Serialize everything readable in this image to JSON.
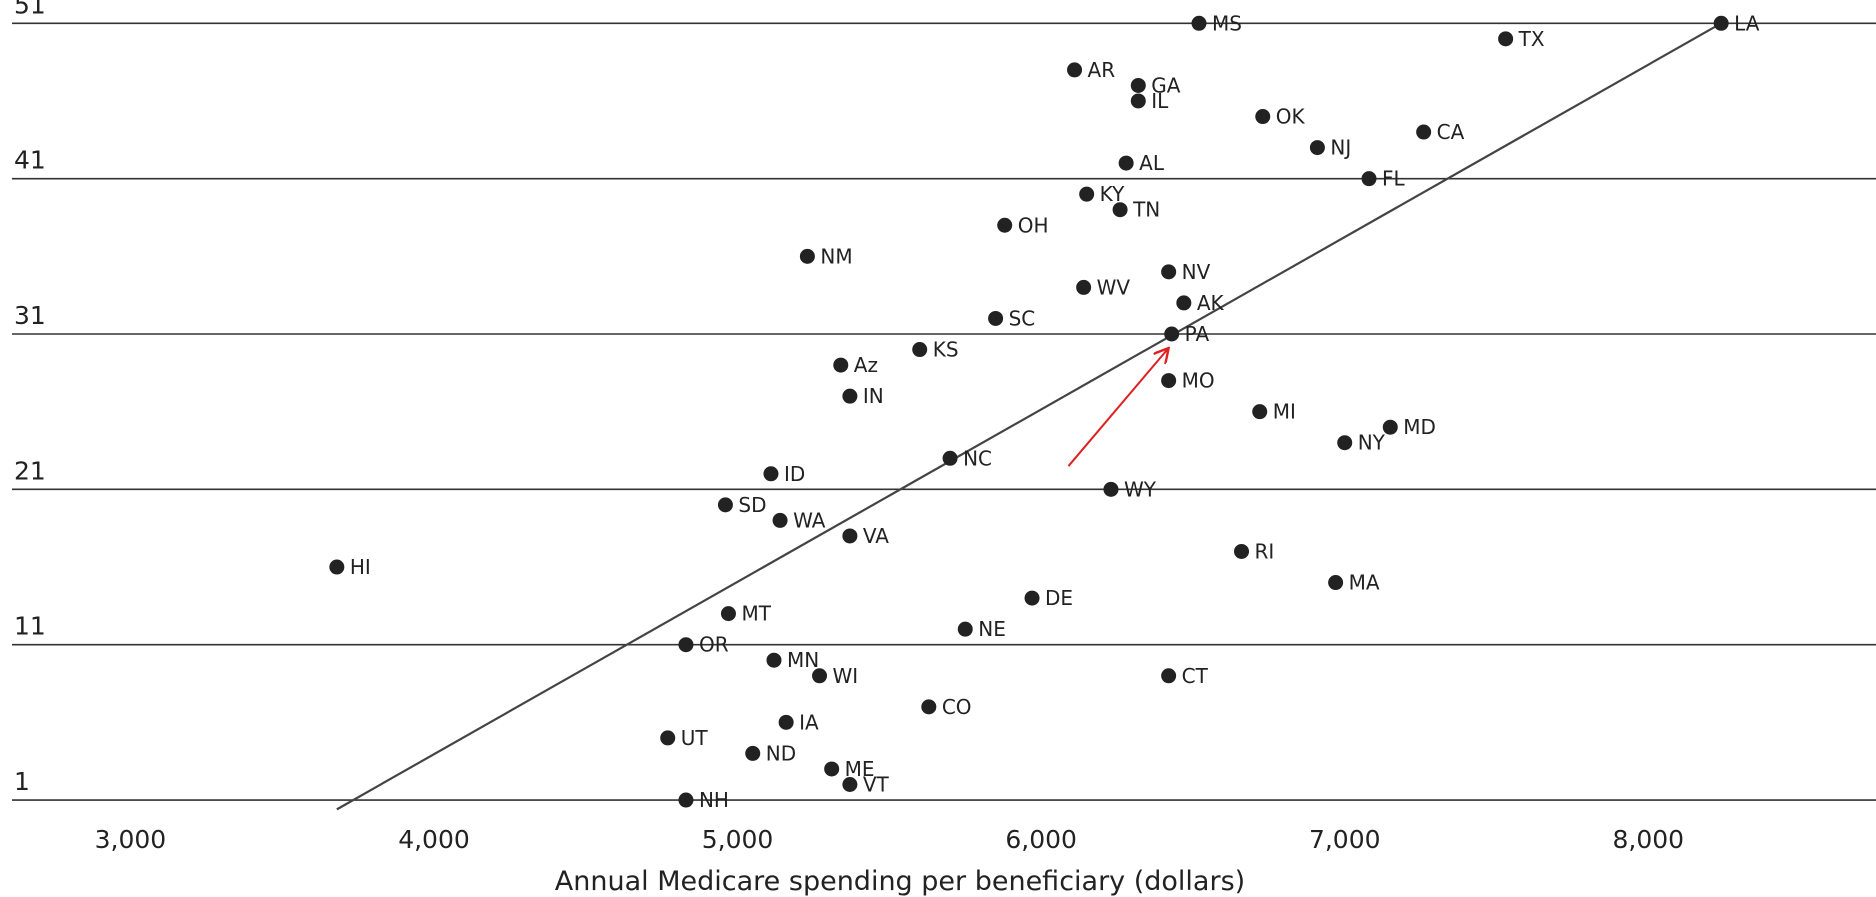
{
  "chart_data": {
    "type": "scatter",
    "title": "",
    "xlabel": "Annual Medicare spending per beneficiary (dollars)",
    "ylabel": "",
    "xlim": [
      2610,
      8750
    ],
    "ylim": [
      52.5,
      -0.8
    ],
    "x_ticks": [
      3000,
      4000,
      5000,
      6000,
      7000,
      8000
    ],
    "x_tick_labels": [
      "3,000",
      "4,000",
      "5,000",
      "6,000",
      "7,000",
      "8,000"
    ],
    "y_ticks": [
      1,
      11,
      21,
      31,
      41,
      51
    ],
    "y_tick_labels": [
      "1",
      "11",
      "21",
      "31",
      "41",
      "51"
    ],
    "grid": "horizontal",
    "colors": {
      "points": "#222222",
      "trend": "#444444",
      "annotation": "#e02020",
      "grid": "#333333"
    },
    "trend_line": {
      "x": [
        3680,
        8240
      ],
      "y": [
        0.4,
        51
      ]
    },
    "annotation": {
      "type": "arrow",
      "from": {
        "x": 6090,
        "y": 22.5
      },
      "to": {
        "x": 6420,
        "y": 30.1
      }
    },
    "points": [
      {
        "label": "NH",
        "x": 4830,
        "y": 1
      },
      {
        "label": "VT",
        "x": 5370,
        "y": 2
      },
      {
        "label": "ME",
        "x": 5310,
        "y": 3
      },
      {
        "label": "ND",
        "x": 5050,
        "y": 4
      },
      {
        "label": "UT",
        "x": 4770,
        "y": 5
      },
      {
        "label": "IA",
        "x": 5160,
        "y": 6
      },
      {
        "label": "CO",
        "x": 5630,
        "y": 7
      },
      {
        "label": "WI",
        "x": 5270,
        "y": 9
      },
      {
        "label": "CT",
        "x": 6420,
        "y": 9
      },
      {
        "label": "MN",
        "x": 5120,
        "y": 10
      },
      {
        "label": "OR",
        "x": 4830,
        "y": 11
      },
      {
        "label": "NE",
        "x": 5750,
        "y": 12
      },
      {
        "label": "MT",
        "x": 4970,
        "y": 13
      },
      {
        "label": "DE",
        "x": 5970,
        "y": 14
      },
      {
        "label": "MA",
        "x": 6970,
        "y": 15
      },
      {
        "label": "HI",
        "x": 3680,
        "y": 16
      },
      {
        "label": "RI",
        "x": 6660,
        "y": 17
      },
      {
        "label": "VA",
        "x": 5370,
        "y": 18
      },
      {
        "label": "WA",
        "x": 5140,
        "y": 19
      },
      {
        "label": "SD",
        "x": 4960,
        "y": 20
      },
      {
        "label": "WY",
        "x": 6230,
        "y": 21
      },
      {
        "label": "ID",
        "x": 5110,
        "y": 22
      },
      {
        "label": "NC",
        "x": 5700,
        "y": 23
      },
      {
        "label": "NY",
        "x": 7000,
        "y": 24
      },
      {
        "label": "MD",
        "x": 7150,
        "y": 25
      },
      {
        "label": "MI",
        "x": 6720,
        "y": 26
      },
      {
        "label": "IN",
        "x": 5370,
        "y": 27
      },
      {
        "label": "MO",
        "x": 6420,
        "y": 28
      },
      {
        "label": "Az",
        "x": 5340,
        "y": 29
      },
      {
        "label": "KS",
        "x": 5600,
        "y": 30
      },
      {
        "label": "PA",
        "x": 6430,
        "y": 31
      },
      {
        "label": "SC",
        "x": 5850,
        "y": 32
      },
      {
        "label": "AK",
        "x": 6470,
        "y": 33
      },
      {
        "label": "WV",
        "x": 6140,
        "y": 34
      },
      {
        "label": "NV",
        "x": 6420,
        "y": 35
      },
      {
        "label": "NM",
        "x": 5230,
        "y": 36
      },
      {
        "label": "OH",
        "x": 5880,
        "y": 38
      },
      {
        "label": "TN",
        "x": 6260,
        "y": 39
      },
      {
        "label": "KY",
        "x": 6150,
        "y": 40
      },
      {
        "label": "FL",
        "x": 7080,
        "y": 41
      },
      {
        "label": "AL",
        "x": 6280,
        "y": 42
      },
      {
        "label": "NJ",
        "x": 6910,
        "y": 43
      },
      {
        "label": "CA",
        "x": 7260,
        "y": 44
      },
      {
        "label": "OK",
        "x": 6730,
        "y": 45
      },
      {
        "label": "IL",
        "x": 6320,
        "y": 46
      },
      {
        "label": "GA",
        "x": 6320,
        "y": 47
      },
      {
        "label": "AR",
        "x": 6110,
        "y": 48
      },
      {
        "label": "TX",
        "x": 7530,
        "y": 50
      },
      {
        "label": "MS",
        "x": 6520,
        "y": 51
      },
      {
        "label": "LA",
        "x": 8240,
        "y": 51
      }
    ]
  }
}
